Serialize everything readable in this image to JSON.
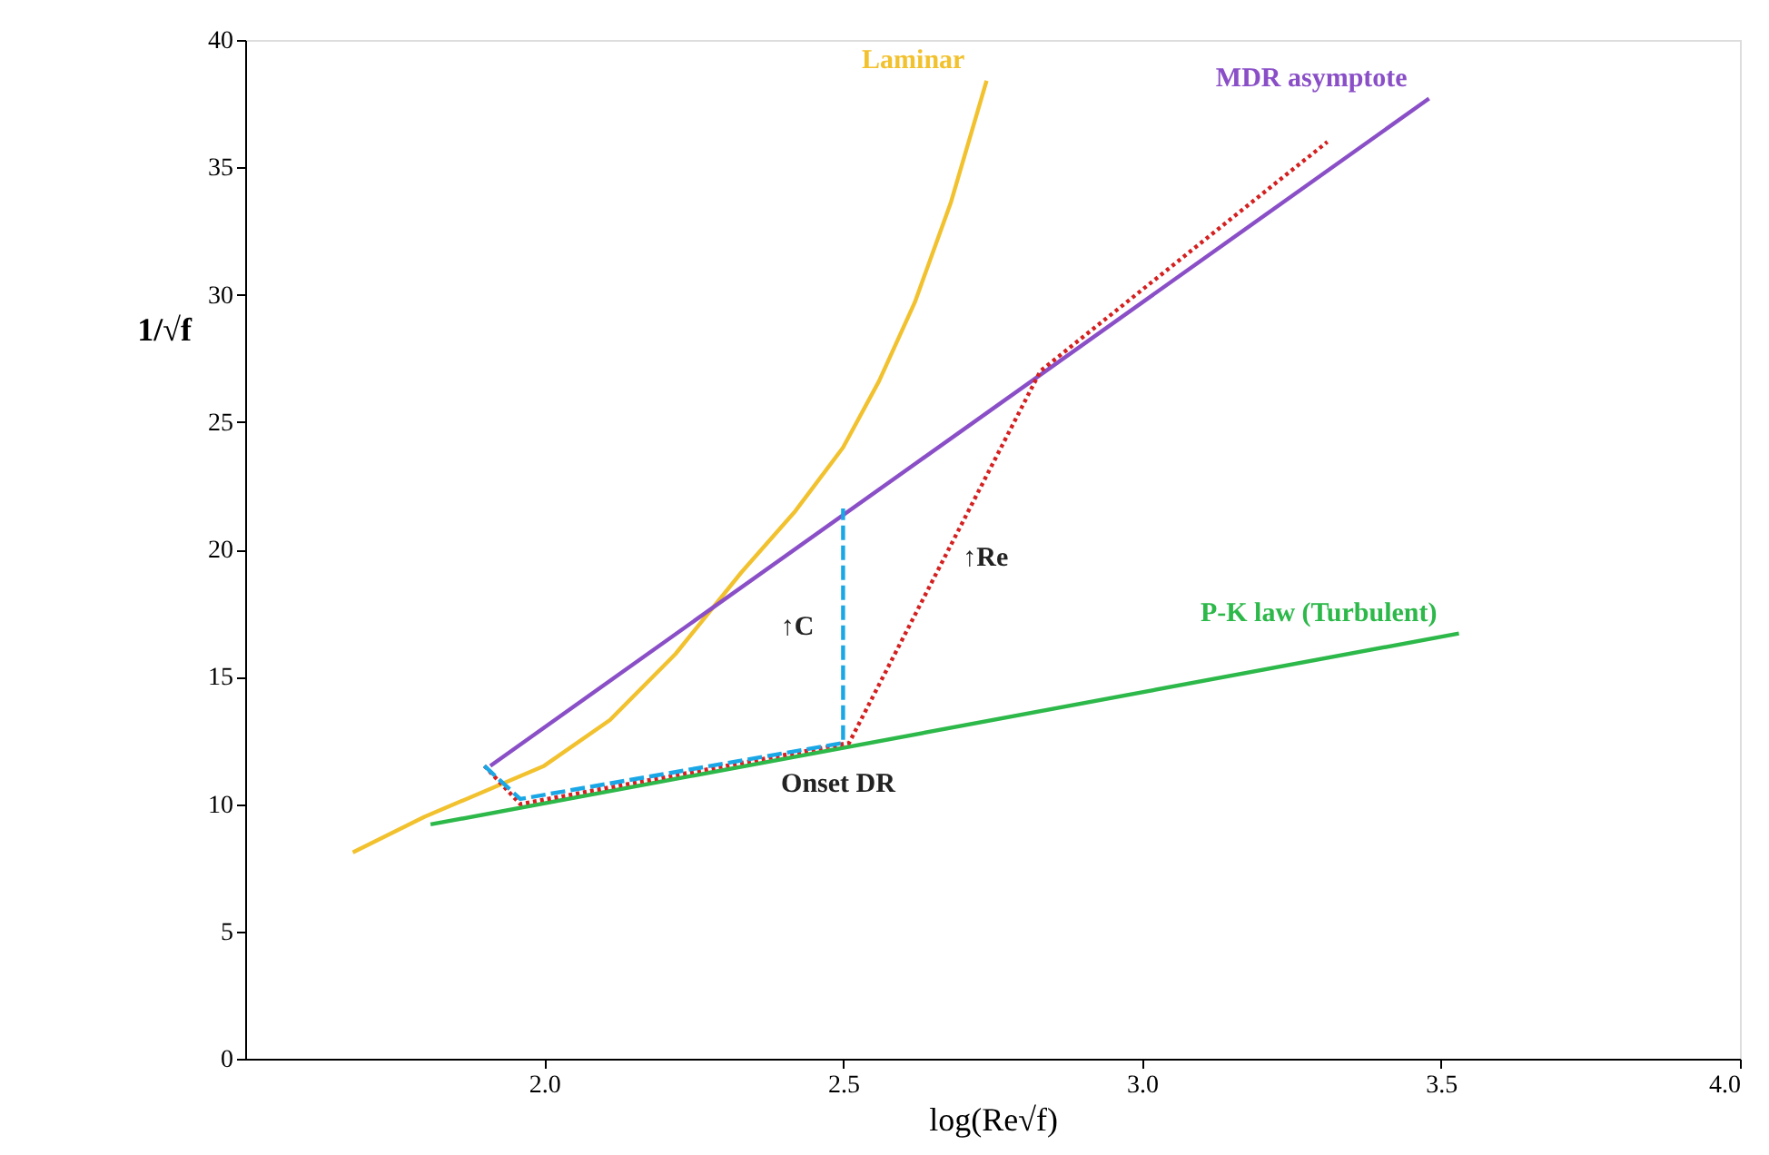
{
  "chart_data": {
    "type": "line",
    "xlabel": "log(Re√f)",
    "ylabel": "1/√f",
    "xlim": [
      1.5,
      4.0
    ],
    "xticks": [
      {
        "value": 2.0,
        "label": "2.0"
      },
      {
        "value": 2.5,
        "label": "2.5"
      },
      {
        "value": 3.0,
        "label": "3.0"
      },
      {
        "value": 3.5,
        "label": "3.5"
      },
      {
        "value": 4.0,
        "label": "4.0"
      }
    ],
    "ylim": [
      0,
      40
    ],
    "yticks": [
      0,
      5,
      10,
      15,
      20,
      25,
      30,
      35,
      40
    ],
    "grid": false,
    "legend": false,
    "marker": "none",
    "series": [
      {
        "name": "Laminar",
        "color": "#f2c12e",
        "line_style": "solid",
        "x": [
          1.68,
          1.8,
          2.0,
          2.11,
          2.22,
          2.33,
          2.42,
          2.5,
          2.56,
          2.62,
          2.68,
          2.74
        ],
        "values": [
          8.1,
          9.5,
          11.5,
          13.3,
          15.9,
          19.1,
          21.5,
          24.0,
          26.6,
          29.7,
          33.6,
          38.4
        ]
      },
      {
        "name": "MDR asymptote",
        "color": "#8a4fc7",
        "line_style": "solid",
        "x": [
          1.91,
          3.48
        ],
        "values": [
          11.5,
          37.7
        ]
      },
      {
        "name": "P-K law (Turbulent)",
        "color": "#2db84a",
        "line_style": "solid",
        "x": [
          1.81,
          3.53
        ],
        "values": [
          9.2,
          16.7
        ]
      },
      {
        "color": "#d42020",
        "line_style": "dotted",
        "x": [
          1.9,
          1.96,
          2.51,
          2.83,
          3.31
        ],
        "values": [
          11.5,
          10.0,
          12.4,
          27.0,
          36.0
        ]
      },
      {
        "color": "#1aa7e6",
        "line_style": "dashed",
        "x": [
          1.9,
          1.96,
          2.5,
          2.5
        ],
        "values": [
          11.5,
          10.2,
          12.4,
          21.6
        ]
      }
    ],
    "annotations": [
      {
        "text": "↑C",
        "x": 2.5,
        "y": 17
      },
      {
        "text": "↑Re",
        "x": 2.67,
        "y": 19.7
      },
      {
        "text": "Onset DR",
        "x": 2.51,
        "y": 12.4
      }
    ]
  }
}
